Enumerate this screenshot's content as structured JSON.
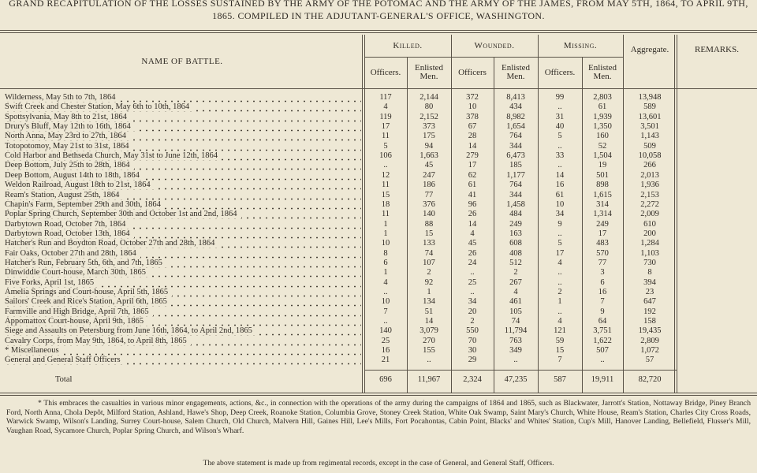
{
  "title": "GRAND RECAPITULATION OF THE LOSSES SUSTAINED BY THE ARMY OF THE POTOMAC AND THE ARMY OF THE JAMES, FROM MAY 5TH, 1864, TO APRIL 9TH, 1865. COMPILED IN THE ADJUTANT-GENERAL'S OFFICE, WASHINGTON.",
  "table": {
    "header": {
      "name": "NAME OF BATTLE.",
      "groups": [
        {
          "label": "Killed.",
          "sub": [
            "Officers.",
            "Enlisted Men."
          ]
        },
        {
          "label": "Wounded.",
          "sub": [
            "Officers",
            "Enlisted Men."
          ]
        },
        {
          "label": "Missing.",
          "sub": [
            "Officers.",
            "Enlisted Men."
          ]
        }
      ],
      "aggregate": "Aggregate.",
      "remarks": "REMARKS."
    },
    "rows": [
      [
        "Wilderness, May 5th to 7th, 1864",
        "117",
        "2,144",
        "372",
        "8,413",
        "99",
        "2,803",
        "13,948"
      ],
      [
        "Swift Creek and Chester Station, May 6th to 10th, 1864",
        "4",
        "80",
        "10",
        "434",
        "..",
        "61",
        "589"
      ],
      [
        "Spottsylvania, May 8th to 21st, 1864",
        "119",
        "2,152",
        "378",
        "8,982",
        "31",
        "1,939",
        "13,601"
      ],
      [
        "Drury's Bluff, May 12th to 16th, 1864",
        "17",
        "373",
        "67",
        "1,654",
        "40",
        "1,350",
        "3,501"
      ],
      [
        "North Anna, May 23rd to 27th, 1864",
        "11",
        "175",
        "28",
        "764",
        "5",
        "160",
        "1,143"
      ],
      [
        "Totopotomoy, May 21st to 31st, 1864",
        "5",
        "94",
        "14",
        "344",
        "..",
        "52",
        "509"
      ],
      [
        "Cold Harbor and Bethseda Church, May 31st to June 12th, 1864",
        "106",
        "1,663",
        "279",
        "6,473",
        "33",
        "1,504",
        "10,058"
      ],
      [
        "Deep Bottom, July 25th to 28th, 1864",
        "..",
        "45",
        "17",
        "185",
        "..",
        "19",
        "266"
      ],
      [
        "Deep Bottom, August 14th to 18th, 1864",
        "12",
        "247",
        "62",
        "1,177",
        "14",
        "501",
        "2,013"
      ],
      [
        "Weldon Railroad, August 18th to 21st, 1864",
        "11",
        "186",
        "61",
        "764",
        "16",
        "898",
        "1,936"
      ],
      [
        "Ream's Station, August 25th, 1864",
        "15",
        "77",
        "41",
        "344",
        "61",
        "1,615",
        "2,153"
      ],
      [
        "Chapin's Farm, September 29th and 30th, 1864",
        "18",
        "376",
        "96",
        "1,458",
        "10",
        "314",
        "2,272"
      ],
      [
        "Poplar Spring Church, September 30th and October 1st and 2nd, 1864",
        "11",
        "140",
        "26",
        "484",
        "34",
        "1,314",
        "2,009"
      ],
      [
        "Darbytown Road, October 7th, 1864",
        "1",
        "88",
        "14",
        "249",
        "9",
        "249",
        "610"
      ],
      [
        "Darbytown Road, October 13th, 1864",
        "1",
        "15",
        "4",
        "163",
        "..",
        "17",
        "200"
      ],
      [
        "Hatcher's Run and Boydton Road, October 27th and 28th, 1864",
        "10",
        "133",
        "45",
        "608",
        "5",
        "483",
        "1,284"
      ],
      [
        "Fair Oaks, October 27th and 28th, 1864",
        "8",
        "74",
        "26",
        "408",
        "17",
        "570",
        "1,103"
      ],
      [
        "Hatcher's Run, February 5th, 6th, and 7th, 1865",
        "6",
        "107",
        "24",
        "512",
        "4",
        "77",
        "730"
      ],
      [
        "Dinwiddie Court-house, March 30th, 1865",
        "1",
        "2",
        "..",
        "2",
        "..",
        "3",
        "8"
      ],
      [
        "Five Forks, April 1st, 1865",
        "4",
        "92",
        "25",
        "267",
        "..",
        "6",
        "394"
      ],
      [
        "Amelia Springs and Court-house, April 5th, 1865",
        "..",
        "1",
        "..",
        "4",
        "2",
        "16",
        "23"
      ],
      [
        "Sailors' Creek and Rice's Station, April 6th, 1865",
        "10",
        "134",
        "34",
        "461",
        "1",
        "7",
        "647"
      ],
      [
        "Farmville and High Bridge, April 7th, 1865",
        "7",
        "51",
        "20",
        "105",
        "..",
        "9",
        "192"
      ],
      [
        "Appomattox Court-house, April 9th, 1865",
        "..",
        "14",
        "2",
        "74",
        "4",
        "64",
        "158"
      ],
      [
        "Siege and Assaults on Petersburg from June 16th, 1864, to April 2nd, 1865",
        "140",
        "3,079",
        "550",
        "11,794",
        "121",
        "3,751",
        "19,435"
      ],
      [
        "Cavalry Corps, from May 9th, 1864, to April 8th, 1865",
        "25",
        "270",
        "70",
        "763",
        "59",
        "1,622",
        "2,809"
      ],
      [
        "* Miscellaneous",
        "16",
        "155",
        "30",
        "349",
        "15",
        "507",
        "1,072"
      ],
      [
        "General and General Staff Officers",
        "21",
        "..",
        "29",
        "..",
        "7",
        "..",
        "57"
      ]
    ],
    "total": [
      "Total",
      "696",
      "11,967",
      "2,324",
      "47,235",
      "587",
      "19,911",
      "82,720"
    ]
  },
  "footnote": "* This embraces the casualties in various minor engagements, actions, &c., in connection with the operations of the army during the campaigns of 1864 and 1865, such as Blackwater, Jarrott's Station, Nottaway Bridge, Piney Branch Ford, North Anna, Chola Depôt, Milford Station, Ashland, Hawe's Shop, Deep Creek, Roanoke Station, Columbia Grove, Stoney Creek Station, White Oak Swamp, Saint Mary's Church, White House, Ream's Station, Charles City Cross Roads, Warwick Swamp, Wilson's Landing, Surrey Court-house, Salem Church, Old Church, Malvern Hill, Gaines Hill, Lee's Mills, Fort Pocahontas, Cabin Point, Blacks' and Whites' Station, Cup's Mill, Hanover Landing, Bellefield, Flusser's Mill, Vaughan Road, Sycamore Church, Poplar Spring Church, and Wilson's Wharf.",
  "note": "The above statement is made up from regimental records, except in the case of General, and General Staff, Officers."
}
